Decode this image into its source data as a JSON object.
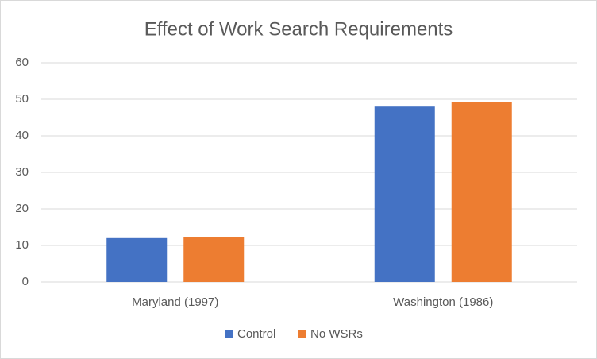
{
  "chart_data": {
    "type": "bar",
    "title": "Effect of Work Search Requirements",
    "categories": [
      "Maryland (1997)",
      "Washington (1986)"
    ],
    "series": [
      {
        "name": "Control",
        "color": "#4472c4",
        "values": [
          12,
          48
        ]
      },
      {
        "name": "No WSRs",
        "color": "#ed7d31",
        "values": [
          12.2,
          49.2
        ]
      }
    ],
    "ylim": [
      0,
      60
    ],
    "yticks": [
      0,
      10,
      20,
      30,
      40,
      50,
      60
    ],
    "grid": true,
    "legend": "bottom"
  }
}
